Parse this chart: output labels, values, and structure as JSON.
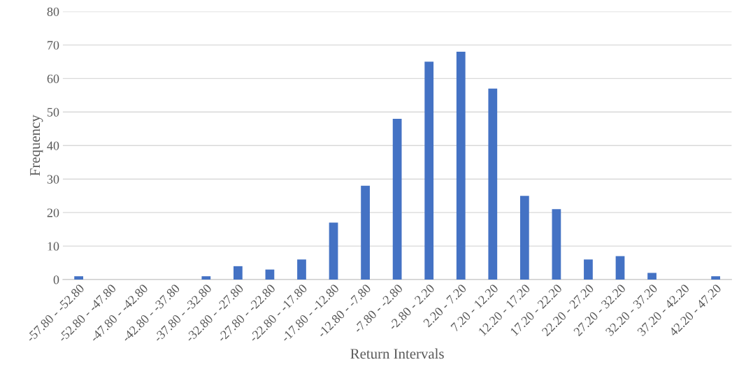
{
  "chart_data": {
    "type": "bar",
    "xlabel": "Return Intervals",
    "ylabel": "Frequency",
    "categories": [
      "-57.80 - -52.80",
      "-52.80 - -47.80",
      "-47.80 - -42.80",
      "-42.80 - -37.80",
      "-37.80 - -32.80",
      "-32.80 - -27.80",
      "-27.80 - -22.80",
      "-22.80 - -17.80",
      "-17.80 - -12.80",
      "-12.80 - -7.80",
      "-7.80 - -2.80",
      "-2.80 - 2.20",
      "2.20 - 7.20",
      "7.20 - 12.20",
      "12.20 - 17.20",
      "17.20 - 22.20",
      "22.20 - 27.20",
      "27.20 - 32.20",
      "32.20 - 37.20",
      "37.20 - 42.20",
      "42.20 - 47.20"
    ],
    "values": [
      1,
      0,
      0,
      0,
      1,
      4,
      3,
      6,
      17,
      28,
      48,
      65,
      68,
      57,
      25,
      21,
      6,
      7,
      2,
      0,
      1
    ],
    "color": "#4472c4",
    "ylim": [
      0,
      80
    ],
    "yticks": [
      0,
      10,
      20,
      30,
      40,
      50,
      60,
      70,
      80
    ],
    "grid": "y",
    "legend": false
  }
}
